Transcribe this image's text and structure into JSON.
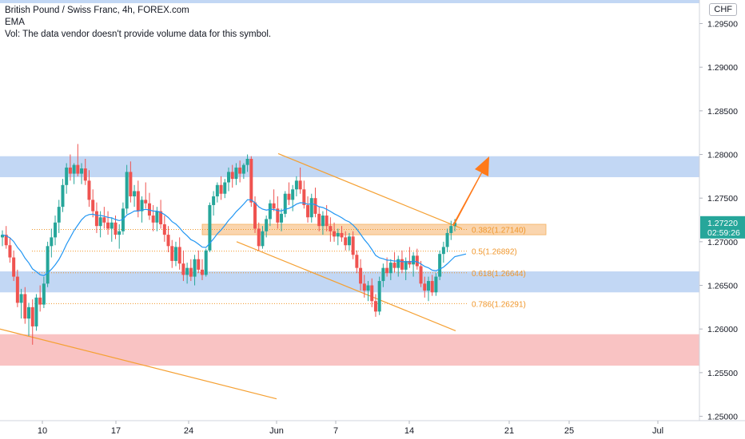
{
  "legend": {
    "title": "British Pound / Swiss Franc, 4h, FOREX.com",
    "indicator": "EMA",
    "volume_note": "Vol: The data vendor doesn't provide volume data for this symbol."
  },
  "currency": "CHF",
  "colors": {
    "up": "#26a69a",
    "down": "#ef5350",
    "ema": "#2196f3",
    "zone_blue": "#bbd3f3",
    "zone_red": "#f8bcbc",
    "fib": "#f0962a",
    "trendline": "#f5a032",
    "arrow": "#ff7a1a",
    "price_tag": "#26a69a"
  },
  "price_tag": {
    "price": "1.27220",
    "countdown": "02:59:26"
  },
  "chart_data": {
    "type": "candlestick",
    "title": "British Pound / Swiss Franc, 4h, FOREX.com",
    "y_ticks": [
      "1.29500",
      "1.29000",
      "1.28500",
      "1.28000",
      "1.27500",
      "1.27000",
      "1.26500",
      "1.26000",
      "1.25500",
      "1.25000"
    ],
    "y_range": [
      1.2495,
      1.2977
    ],
    "x_ticks": [
      "10",
      "17",
      "24",
      "Jun",
      "7",
      "14",
      "21",
      "25",
      "Jul"
    ],
    "zones": [
      {
        "color": "blue",
        "from": 1.2774,
        "to": 1.2798
      },
      {
        "color": "blue",
        "from": 1.2642,
        "to": 1.2666
      },
      {
        "color": "red",
        "from": 1.2558,
        "to": 1.2594
      }
    ],
    "fib_levels": [
      {
        "label": "0.382(1.27140)",
        "value": 1.2714
      },
      {
        "label": "0.5(1.26892)",
        "value": 1.26892
      },
      {
        "label": "0.618(1.26644)",
        "value": 1.26644
      },
      {
        "label": "0.786(1.26291)",
        "value": 1.26291
      }
    ],
    "candles": [
      [
        1.2705,
        1.2713,
        1.2695,
        1.2708
      ],
      [
        1.2708,
        1.2718,
        1.2692,
        1.2696
      ],
      [
        1.2696,
        1.2705,
        1.2676,
        1.2682
      ],
      [
        1.2682,
        1.269,
        1.2655,
        1.266
      ],
      [
        1.266,
        1.2668,
        1.2625,
        1.263
      ],
      [
        1.263,
        1.2646,
        1.2612,
        1.264
      ],
      [
        1.264,
        1.2648,
        1.2606,
        1.2612
      ],
      [
        1.2612,
        1.263,
        1.2592,
        1.2625
      ],
      [
        1.2625,
        1.2634,
        1.2582,
        1.2603
      ],
      [
        1.2603,
        1.264,
        1.2598,
        1.2636
      ],
      [
        1.2636,
        1.265,
        1.262,
        1.2628
      ],
      [
        1.2628,
        1.266,
        1.2624,
        1.2652
      ],
      [
        1.2652,
        1.27,
        1.2648,
        1.2695
      ],
      [
        1.2695,
        1.2715,
        1.2682,
        1.2705
      ],
      [
        1.2705,
        1.273,
        1.2696,
        1.2722
      ],
      [
        1.2722,
        1.2748,
        1.271,
        1.274
      ],
      [
        1.274,
        1.2772,
        1.2734,
        1.2765
      ],
      [
        1.2765,
        1.279,
        1.2755,
        1.2785
      ],
      [
        1.2785,
        1.28,
        1.277,
        1.2778
      ],
      [
        1.2778,
        1.279,
        1.2766,
        1.2788
      ],
      [
        1.2788,
        1.2812,
        1.2775,
        1.2778
      ],
      [
        1.2778,
        1.279,
        1.2766,
        1.2784
      ],
      [
        1.2784,
        1.2795,
        1.2765,
        1.277
      ],
      [
        1.277,
        1.2782,
        1.274,
        1.2748
      ],
      [
        1.2748,
        1.276,
        1.2728,
        1.2735
      ],
      [
        1.2735,
        1.2745,
        1.271,
        1.2718
      ],
      [
        1.2718,
        1.2735,
        1.2705,
        1.2728
      ],
      [
        1.2728,
        1.274,
        1.2715,
        1.2722
      ],
      [
        1.2722,
        1.2735,
        1.2708,
        1.2715
      ],
      [
        1.2715,
        1.2728,
        1.27,
        1.2722
      ],
      [
        1.2722,
        1.273,
        1.2703,
        1.2708
      ],
      [
        1.2708,
        1.272,
        1.2692,
        1.2712
      ],
      [
        1.2712,
        1.2745,
        1.2708,
        1.2738
      ],
      [
        1.2738,
        1.2788,
        1.2732,
        1.278
      ],
      [
        1.278,
        1.2792,
        1.2745,
        1.2752
      ],
      [
        1.2752,
        1.2765,
        1.274,
        1.2758
      ],
      [
        1.2758,
        1.277,
        1.2728,
        1.2735
      ],
      [
        1.2735,
        1.2752,
        1.2722,
        1.2748
      ],
      [
        1.2748,
        1.2768,
        1.2738,
        1.2744
      ],
      [
        1.2744,
        1.2756,
        1.2725,
        1.273
      ],
      [
        1.273,
        1.2742,
        1.2712,
        1.2722
      ],
      [
        1.2722,
        1.274,
        1.2712,
        1.2735
      ],
      [
        1.2735,
        1.2748,
        1.2715,
        1.272
      ],
      [
        1.272,
        1.273,
        1.27,
        1.2708
      ],
      [
        1.2708,
        1.2718,
        1.2688,
        1.2695
      ],
      [
        1.2695,
        1.2702,
        1.267,
        1.2678
      ],
      [
        1.2678,
        1.27,
        1.2672,
        1.2694
      ],
      [
        1.2694,
        1.2705,
        1.2668,
        1.2675
      ],
      [
        1.2675,
        1.269,
        1.2655,
        1.2662
      ],
      [
        1.2662,
        1.2676,
        1.2652,
        1.267
      ],
      [
        1.267,
        1.268,
        1.2655,
        1.266
      ],
      [
        1.266,
        1.2685,
        1.265,
        1.268
      ],
      [
        1.268,
        1.269,
        1.2664,
        1.2668
      ],
      [
        1.2668,
        1.268,
        1.2656,
        1.2662
      ],
      [
        1.2662,
        1.2692,
        1.266,
        1.269
      ],
      [
        1.269,
        1.2745,
        1.2688,
        1.2742
      ],
      [
        1.2742,
        1.2758,
        1.273,
        1.2752
      ],
      [
        1.2752,
        1.2768,
        1.2745,
        1.2765
      ],
      [
        1.2765,
        1.2775,
        1.2748,
        1.2755
      ],
      [
        1.2755,
        1.2772,
        1.275,
        1.2768
      ],
      [
        1.2768,
        1.2785,
        1.2758,
        1.278
      ],
      [
        1.278,
        1.2788,
        1.2762,
        1.2772
      ],
      [
        1.2772,
        1.279,
        1.2765,
        1.2785
      ],
      [
        1.2785,
        1.2793,
        1.2768,
        1.2778
      ],
      [
        1.2778,
        1.279,
        1.2772,
        1.2788
      ],
      [
        1.2788,
        1.28,
        1.278,
        1.2795
      ],
      [
        1.2795,
        1.2798,
        1.274,
        1.2745
      ],
      [
        1.2745,
        1.2752,
        1.271,
        1.2715
      ],
      [
        1.2715,
        1.2722,
        1.269,
        1.2695
      ],
      [
        1.2695,
        1.2718,
        1.2692,
        1.2712
      ],
      [
        1.2712,
        1.273,
        1.2705,
        1.2726
      ],
      [
        1.2726,
        1.2748,
        1.2718,
        1.2744
      ],
      [
        1.2744,
        1.276,
        1.2735,
        1.2738
      ],
      [
        1.2738,
        1.2752,
        1.2715,
        1.2722
      ],
      [
        1.2722,
        1.2738,
        1.2712,
        1.2732
      ],
      [
        1.2732,
        1.2758,
        1.2728,
        1.2755
      ],
      [
        1.2755,
        1.2768,
        1.2742,
        1.2748
      ],
      [
        1.2748,
        1.2765,
        1.2735,
        1.276
      ],
      [
        1.276,
        1.2775,
        1.2752,
        1.277
      ],
      [
        1.277,
        1.2785,
        1.2755,
        1.276
      ],
      [
        1.276,
        1.277,
        1.2738,
        1.2742
      ],
      [
        1.2742,
        1.2752,
        1.2722,
        1.2728
      ],
      [
        1.2728,
        1.2755,
        1.2722,
        1.275
      ],
      [
        1.275,
        1.2762,
        1.2728,
        1.2732
      ],
      [
        1.2732,
        1.274,
        1.2712,
        1.2718
      ],
      [
        1.2718,
        1.2735,
        1.2708,
        1.273
      ],
      [
        1.273,
        1.2742,
        1.2712,
        1.2718
      ],
      [
        1.2718,
        1.2728,
        1.27,
        1.2712
      ],
      [
        1.2712,
        1.2722,
        1.27,
        1.2706
      ],
      [
        1.2706,
        1.2715,
        1.2696,
        1.271
      ],
      [
        1.271,
        1.2718,
        1.27,
        1.2705
      ],
      [
        1.2705,
        1.2712,
        1.269,
        1.2696
      ],
      [
        1.2696,
        1.271,
        1.269,
        1.2706
      ],
      [
        1.2706,
        1.2712,
        1.268,
        1.2685
      ],
      [
        1.2685,
        1.269,
        1.2664,
        1.267
      ],
      [
        1.267,
        1.268,
        1.2644,
        1.2652
      ],
      [
        1.2652,
        1.2662,
        1.2636,
        1.2644
      ],
      [
        1.2644,
        1.2655,
        1.2632,
        1.265
      ],
      [
        1.265,
        1.2658,
        1.2625,
        1.2632
      ],
      [
        1.2632,
        1.264,
        1.2614,
        1.262
      ],
      [
        1.262,
        1.266,
        1.2616,
        1.2655
      ],
      [
        1.2655,
        1.2675,
        1.2648,
        1.267
      ],
      [
        1.267,
        1.2682,
        1.266,
        1.2664
      ],
      [
        1.2664,
        1.268,
        1.2656,
        1.2676
      ],
      [
        1.2676,
        1.2688,
        1.2665,
        1.267
      ],
      [
        1.267,
        1.2684,
        1.266,
        1.268
      ],
      [
        1.268,
        1.269,
        1.2664,
        1.2668
      ],
      [
        1.2668,
        1.2682,
        1.2656,
        1.2678
      ],
      [
        1.2678,
        1.2694,
        1.267,
        1.2674
      ],
      [
        1.2674,
        1.2688,
        1.266,
        1.2684
      ],
      [
        1.2684,
        1.2692,
        1.2668,
        1.2672
      ],
      [
        1.2672,
        1.2678,
        1.2648,
        1.2652
      ],
      [
        1.2652,
        1.266,
        1.2636,
        1.2644
      ],
      [
        1.2644,
        1.266,
        1.2632,
        1.2655
      ],
      [
        1.2655,
        1.2662,
        1.2638,
        1.2642
      ],
      [
        1.2642,
        1.2664,
        1.2638,
        1.266
      ],
      [
        1.266,
        1.269,
        1.2656,
        1.2686
      ],
      [
        1.2686,
        1.27,
        1.2676,
        1.2694
      ],
      [
        1.2694,
        1.2715,
        1.2688,
        1.271
      ],
      [
        1.271,
        1.2724,
        1.2702,
        1.2718
      ],
      [
        1.2718,
        1.2726,
        1.2712,
        1.2722
      ]
    ]
  }
}
